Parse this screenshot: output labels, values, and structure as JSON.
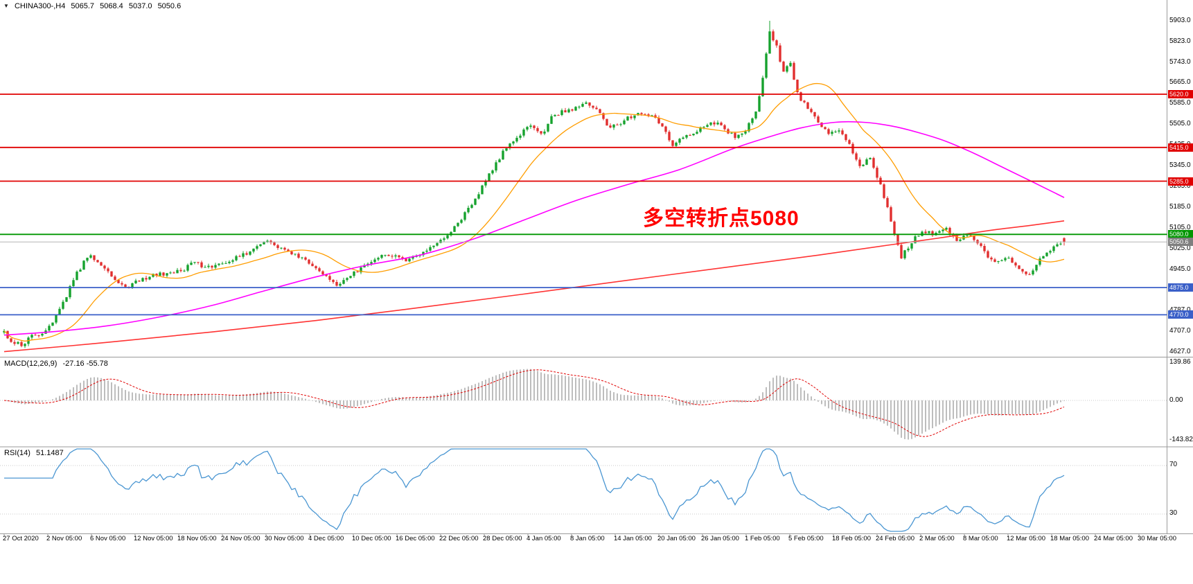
{
  "title_bar": {
    "dropdown_icon": "▼",
    "symbol_timeframe": "CHINA300-,H4",
    "open": "5065.7",
    "high": "5068.4",
    "low": "5037.0",
    "close": "5050.6"
  },
  "annotation": {
    "text": "多空转折点5080",
    "color": "#ff0000"
  },
  "price_axis": {
    "ticks": [
      "5903.0",
      "5823.0",
      "5743.0",
      "5665.0",
      "5585.0",
      "5505.0",
      "5425.0",
      "5345.0",
      "5265.0",
      "5185.0",
      "5105.0",
      "5025.0",
      "4945.0",
      "4865.0",
      "4787.0",
      "4707.0",
      "4627.0"
    ]
  },
  "time_axis": {
    "labels": [
      "27 Oct 2020",
      "2 Nov 05:00",
      "6 Nov 05:00",
      "12 Nov 05:00",
      "18 Nov 05:00",
      "24 Nov 05:00",
      "30 Nov 05:00",
      "4 Dec 05:00",
      "10 Dec 05:00",
      "16 Dec 05:00",
      "22 Dec 05:00",
      "28 Dec 05:00",
      "4 Jan 05:00",
      "8 Jan 05:00",
      "14 Jan 05:00",
      "20 Jan 05:00",
      "26 Jan 05:00",
      "1 Feb 05:00",
      "5 Feb 05:00",
      "18 Feb 05:00",
      "24 Feb 05:00",
      "2 Mar 05:00",
      "8 Mar 05:00",
      "12 Mar 05:00",
      "18 Mar 05:00",
      "24 Mar 05:00",
      "30 Mar 05:00"
    ]
  },
  "indicator_panels": {
    "macd": {
      "label": "MACD(12,26,9)",
      "values": "-27.16 -55.78",
      "histogram_color": "#bdbdbd",
      "signal_color": "#e00000",
      "axis_labels": [
        {
          "text": "139.86",
          "value": 139.86
        },
        {
          "text": "0.00",
          "value": 0
        },
        {
          "text": "-143.82",
          "value": -143.82
        }
      ]
    },
    "rsi": {
      "label": "RSI(14)",
      "value": "51.1487",
      "line_color": "#4a96d2",
      "axis_labels": [
        {
          "text": "70",
          "value": 70
        },
        {
          "text": "30",
          "value": 30
        }
      ]
    }
  },
  "chart_data": {
    "type": "candlestick",
    "title": "CHINA300-,H4",
    "symbol": "CHINA300-",
    "timeframe": "H4",
    "ylim": [
      4627,
      5903
    ],
    "x_range": [
      "27 Oct 2020",
      "30 Mar 05:00"
    ],
    "candle_count": 307,
    "up_color": "#16a22e",
    "down_color": "#e12f2f",
    "noise": 8,
    "wick_extra": 9,
    "last_candle": {
      "o": 5065.7,
      "h": 5068.4,
      "l": 5037.0,
      "c": 5050.6
    },
    "overrides": [
      {
        "i": 221,
        "h": 5903.0
      }
    ],
    "price_anchors": [
      [
        0,
        4705
      ],
      [
        2,
        4668
      ],
      [
        5,
        4652
      ],
      [
        8,
        4688
      ],
      [
        11,
        4700
      ],
      [
        14,
        4748
      ],
      [
        17,
        4815
      ],
      [
        20,
        4905
      ],
      [
        23,
        4975
      ],
      [
        25,
        4995
      ],
      [
        27,
        4975
      ],
      [
        30,
        4938
      ],
      [
        33,
        4898
      ],
      [
        36,
        4878
      ],
      [
        39,
        4902
      ],
      [
        43,
        4922
      ],
      [
        48,
        4932
      ],
      [
        52,
        4948
      ],
      [
        55,
        4978
      ],
      [
        58,
        4948
      ],
      [
        62,
        4962
      ],
      [
        66,
        4988
      ],
      [
        70,
        5008
      ],
      [
        73,
        5042
      ],
      [
        76,
        5052
      ],
      [
        79,
        5032
      ],
      [
        83,
        5008
      ],
      [
        86,
        4988
      ],
      [
        89,
        4962
      ],
      [
        93,
        4920
      ],
      [
        96,
        4882
      ],
      [
        99,
        4908
      ],
      [
        103,
        4952
      ],
      [
        107,
        4988
      ],
      [
        110,
        5002
      ],
      [
        113,
        4992
      ],
      [
        116,
        4972
      ],
      [
        119,
        4998
      ],
      [
        123,
        5032
      ],
      [
        126,
        5058
      ],
      [
        129,
        5092
      ],
      [
        132,
        5140
      ],
      [
        135,
        5200
      ],
      [
        138,
        5262
      ],
      [
        141,
        5330
      ],
      [
        144,
        5398
      ],
      [
        147,
        5442
      ],
      [
        150,
        5478
      ],
      [
        152,
        5498
      ],
      [
        155,
        5462
      ],
      [
        158,
        5528
      ],
      [
        161,
        5552
      ],
      [
        164,
        5562
      ],
      [
        168,
        5588
      ],
      [
        171,
        5562
      ],
      [
        175,
        5488
      ],
      [
        179,
        5518
      ],
      [
        183,
        5552
      ],
      [
        187,
        5542
      ],
      [
        190,
        5495
      ],
      [
        193,
        5425
      ],
      [
        196,
        5448
      ],
      [
        200,
        5482
      ],
      [
        204,
        5518
      ],
      [
        208,
        5488
      ],
      [
        211,
        5452
      ],
      [
        214,
        5478
      ],
      [
        217,
        5548
      ],
      [
        219,
        5685
      ],
      [
        221,
        5868
      ],
      [
        223,
        5802
      ],
      [
        225,
        5702
      ],
      [
        227,
        5742
      ],
      [
        229,
        5622
      ],
      [
        232,
        5562
      ],
      [
        235,
        5512
      ],
      [
        238,
        5468
      ],
      [
        241,
        5482
      ],
      [
        244,
        5422
      ],
      [
        247,
        5348
      ],
      [
        250,
        5372
      ],
      [
        253,
        5272
      ],
      [
        255,
        5182
      ],
      [
        257,
        5078
      ],
      [
        259,
        4992
      ],
      [
        261,
        5032
      ],
      [
        263,
        5072
      ],
      [
        266,
        5088
      ],
      [
        269,
        5078
      ],
      [
        272,
        5098
      ],
      [
        275,
        5062
      ],
      [
        278,
        5075
      ],
      [
        281,
        5052
      ],
      [
        284,
        4998
      ],
      [
        287,
        4972
      ],
      [
        290,
        4992
      ],
      [
        293,
        4952
      ],
      [
        296,
        4918
      ],
      [
        298,
        4958
      ],
      [
        300,
        5002
      ],
      [
        303,
        5028
      ],
      [
        306,
        5050.6
      ]
    ],
    "levels": [
      {
        "value": "5620.0",
        "price": 5620.0,
        "color": "#e00000",
        "type": "resistance"
      },
      {
        "value": "5415.0",
        "price": 5415.0,
        "color": "#e00000",
        "type": "resistance"
      },
      {
        "value": "5285.0",
        "price": 5285.0,
        "color": "#e00000",
        "type": "resistance"
      },
      {
        "value": "5080.0",
        "price": 5080.0,
        "color": "#009600",
        "type": "pivot"
      },
      {
        "value": "4875.0",
        "price": 4875.0,
        "color": "#3a5fc8",
        "type": "support"
      },
      {
        "value": "4770.0",
        "price": 4770.0,
        "color": "#3a5fc8",
        "type": "support"
      }
    ],
    "current_price": {
      "value": "5050.6",
      "price": 5050.6,
      "badge_color": "#7f7f7f",
      "line_color": "#b4b4b4"
    },
    "moving_averages": [
      {
        "name": "ma-fast",
        "type": "sma",
        "period": 20,
        "color": "#ff9d00",
        "width": 1.3
      },
      {
        "name": "ma-mid",
        "color": "#ff00ff",
        "width": 1.6,
        "anchors": [
          [
            0,
            4692
          ],
          [
            15,
            4706
          ],
          [
            30,
            4728
          ],
          [
            45,
            4762
          ],
          [
            60,
            4806
          ],
          [
            75,
            4862
          ],
          [
            90,
            4916
          ],
          [
            105,
            4962
          ],
          [
            120,
            5000
          ],
          [
            135,
            5060
          ],
          [
            150,
            5135
          ],
          [
            165,
            5210
          ],
          [
            180,
            5272
          ],
          [
            195,
            5330
          ],
          [
            210,
            5408
          ],
          [
            220,
            5452
          ],
          [
            230,
            5490
          ],
          [
            240,
            5512
          ],
          [
            248,
            5512
          ],
          [
            256,
            5498
          ],
          [
            264,
            5472
          ],
          [
            272,
            5438
          ],
          [
            280,
            5392
          ],
          [
            288,
            5340
          ],
          [
            296,
            5288
          ],
          [
            306,
            5222
          ]
        ]
      },
      {
        "name": "ma-slow",
        "color": "#ff3333",
        "width": 1.6,
        "anchors": [
          [
            0,
            4628
          ],
          [
            30,
            4664
          ],
          [
            60,
            4704
          ],
          [
            90,
            4748
          ],
          [
            120,
            4798
          ],
          [
            150,
            4850
          ],
          [
            180,
            4903
          ],
          [
            210,
            4956
          ],
          [
            235,
            5000
          ],
          [
            255,
            5038
          ],
          [
            270,
            5066
          ],
          [
            285,
            5096
          ],
          [
            296,
            5114
          ],
          [
            306,
            5132
          ]
        ]
      }
    ],
    "indicators": {
      "macd": {
        "fast": 12,
        "slow": 26,
        "signal": 9
      },
      "rsi": {
        "period": 14
      }
    }
  }
}
